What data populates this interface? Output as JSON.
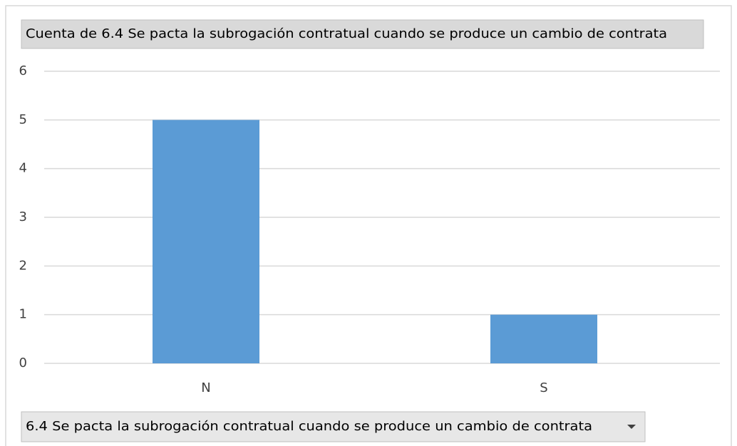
{
  "chart_data": {
    "type": "bar",
    "title": "Cuenta de 6.4 Se pacta la subrogación contratual cuando se produce un cambio de contrata",
    "field_button": "6.4 Se pacta la subrogación contratual cuando se produce un cambio de contrata",
    "categories": [
      "N",
      "S"
    ],
    "values": [
      5,
      1
    ],
    "color": "#5b9bd5",
    "ylim": [
      0,
      6
    ],
    "yticks": [
      0,
      1,
      2,
      3,
      4,
      5,
      6
    ],
    "grid": true
  }
}
